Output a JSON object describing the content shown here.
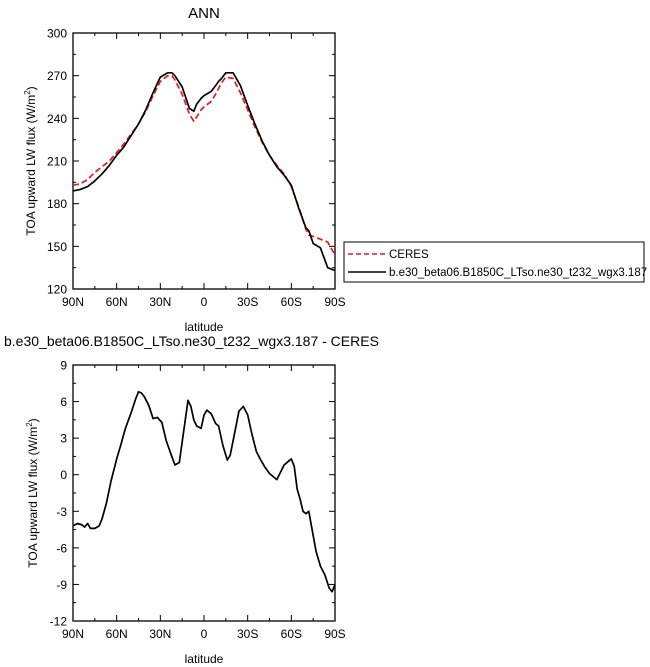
{
  "chart_data": [
    {
      "type": "line",
      "title": "ANN",
      "xlabel": "latitude",
      "ylabel": "TOA upward LW flux (W/m",
      "ylabel_sup": "2",
      "ylabel_tail": ")",
      "xlim": [
        90,
        -90
      ],
      "ylim": [
        120,
        300
      ],
      "xticks": [
        90,
        60,
        30,
        0,
        -30,
        -60,
        -90
      ],
      "xtick_labels": [
        "90N",
        "60N",
        "30N",
        "0",
        "30S",
        "60S",
        "90S"
      ],
      "yticks": [
        120,
        150,
        180,
        210,
        240,
        270,
        300
      ],
      "ytick_labels": [
        "120",
        "150",
        "180",
        "210",
        "240",
        "270",
        "300"
      ],
      "legend_position": "right",
      "series": [
        {
          "name": "CERES",
          "color": "#e8191a",
          "dash": "dashed",
          "x": [
            90,
            85,
            80,
            75,
            70,
            65,
            60,
            55,
            50,
            45,
            40,
            35,
            30,
            25,
            22,
            20,
            15,
            10,
            7,
            5,
            2,
            0,
            -5,
            -8,
            -10,
            -12,
            -15,
            -20,
            -25,
            -30,
            -35,
            -40,
            -45,
            -50,
            -55,
            -60,
            -65,
            -70,
            -72,
            -75,
            -80,
            -85,
            -90
          ],
          "y": [
            193,
            194,
            197,
            202,
            206,
            210,
            216,
            222,
            229,
            236,
            245,
            256,
            266,
            270,
            270,
            267,
            257,
            243,
            238,
            241,
            246,
            248,
            252,
            257,
            261,
            265,
            269,
            268,
            258,
            246,
            234,
            223,
            214,
            207,
            201,
            192,
            178,
            162,
            158,
            157,
            155,
            153,
            144
          ]
        },
        {
          "name": "b.e30_beta06.B1850C_LTso.ne30_t232_wgx3.187",
          "color": "#000000",
          "dash": "solid",
          "x": [
            90,
            85,
            80,
            75,
            70,
            65,
            60,
            55,
            50,
            45,
            40,
            35,
            30,
            25,
            22,
            20,
            15,
            10,
            7,
            5,
            2,
            0,
            -5,
            -8,
            -10,
            -12,
            -15,
            -20,
            -25,
            -30,
            -35,
            -40,
            -45,
            -50,
            -55,
            -60,
            -65,
            -70,
            -72,
            -75,
            -80,
            -85,
            -90
          ],
          "y": [
            189,
            190,
            192,
            196,
            201,
            207,
            214,
            220,
            228,
            236,
            246,
            258,
            269,
            272,
            272,
            270,
            262,
            247,
            245,
            250,
            254,
            256,
            259,
            263,
            266,
            268,
            272,
            272,
            263,
            249,
            236,
            224,
            214,
            206,
            200,
            193,
            177,
            163,
            161,
            152,
            149,
            135,
            133
          ]
        }
      ]
    },
    {
      "type": "line",
      "title": "b.e30_beta06.B1850C_LTso.ne30_t232_wgx3.187 - CERES",
      "xlabel": "latitude",
      "ylabel": "TOA upward LW flux (W/m",
      "ylabel_sup": "2",
      "ylabel_tail": ")",
      "xlim": [
        90,
        -90
      ],
      "ylim": [
        -12,
        9
      ],
      "xticks": [
        90,
        60,
        30,
        0,
        -30,
        -60,
        -90
      ],
      "xtick_labels": [
        "90N",
        "60N",
        "30N",
        "0",
        "30S",
        "60S",
        "90S"
      ],
      "yticks": [
        -12,
        -9,
        -6,
        -3,
        0,
        3,
        6,
        9
      ],
      "ytick_labels": [
        "-12",
        "-9",
        "-6",
        "-3",
        "0",
        "3",
        "6",
        "9"
      ],
      "series": [
        {
          "color": "#000000",
          "dash": "solid",
          "x": [
            90,
            87,
            84,
            82,
            80,
            78,
            75,
            72,
            70,
            67,
            64,
            60,
            57,
            54,
            50,
            47,
            45,
            43,
            41,
            38,
            35,
            32,
            29,
            26,
            23,
            20,
            17,
            13,
            11,
            9,
            7,
            5,
            2,
            0,
            -2,
            -5,
            -8,
            -10,
            -13,
            -16,
            -18,
            -21,
            -24,
            -27,
            -30,
            -33,
            -36,
            -39,
            -42,
            -45,
            -50,
            -55,
            -58,
            -60,
            -62,
            -64,
            -66,
            -68,
            -70,
            -72,
            -75,
            -77,
            -80,
            -83,
            -86,
            -88,
            -90
          ],
          "y": [
            -4.2,
            -4.0,
            -4.1,
            -4.3,
            -4.0,
            -4.4,
            -4.4,
            -4.2,
            -3.6,
            -2.3,
            -0.6,
            1.3,
            2.5,
            3.8,
            5.1,
            6.2,
            6.8,
            6.7,
            6.4,
            5.7,
            4.6,
            4.7,
            4.3,
            2.8,
            1.8,
            0.8,
            1.0,
            4.4,
            6.1,
            5.6,
            4.5,
            4.0,
            3.8,
            4.9,
            5.3,
            5.0,
            4.2,
            4.0,
            2.4,
            1.2,
            1.6,
            3.4,
            5.2,
            5.6,
            4.9,
            3.3,
            1.9,
            1.2,
            0.6,
            0.1,
            -0.4,
            0.8,
            1.1,
            1.3,
            0.7,
            -1.2,
            -2.0,
            -3.0,
            -3.2,
            -3.0,
            -5.0,
            -6.3,
            -7.5,
            -8.2,
            -9.3,
            -9.6,
            -9.0
          ]
        }
      ]
    }
  ]
}
